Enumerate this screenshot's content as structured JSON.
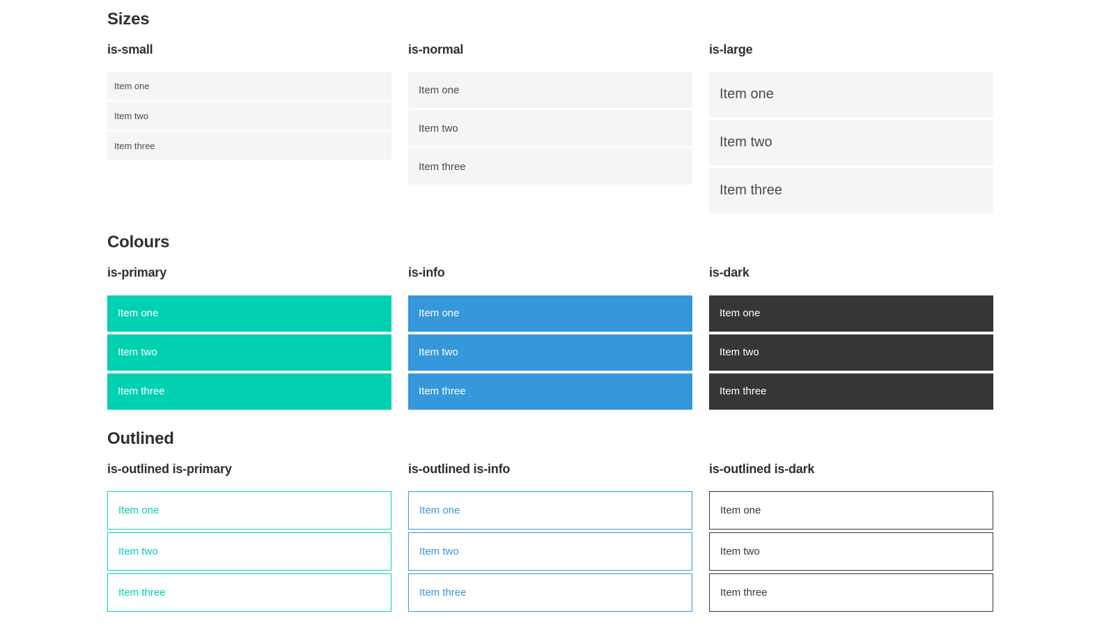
{
  "colors": {
    "primary": "#00d1b2",
    "info": "#3498db",
    "dark": "#363636",
    "item_background": "#f5f5f5",
    "item_text": "#4a4a4a",
    "heading_text": "#2f2f2f",
    "page_background": "#ffffff"
  },
  "sections": [
    {
      "title": "Sizes",
      "groups": [
        {
          "label": "is-small",
          "variant": "size-small",
          "items": [
            "Item one",
            "Item two",
            "Item three"
          ]
        },
        {
          "label": "is-normal",
          "variant": "size-normal",
          "items": [
            "Item one",
            "Item two",
            "Item three"
          ]
        },
        {
          "label": "is-large",
          "variant": "size-large",
          "items": [
            "Item one",
            "Item two",
            "Item three"
          ]
        }
      ]
    },
    {
      "title": "Colours",
      "groups": [
        {
          "label": "is-primary",
          "variant": "color-primary",
          "items": [
            "Item one",
            "Item two",
            "Item three"
          ]
        },
        {
          "label": "is-info",
          "variant": "color-info",
          "items": [
            "Item one",
            "Item two",
            "Item three"
          ]
        },
        {
          "label": "is-dark",
          "variant": "color-dark",
          "items": [
            "Item one",
            "Item two",
            "Item three"
          ]
        }
      ]
    },
    {
      "title": "Outlined",
      "groups": [
        {
          "label": "is-outlined is-primary",
          "variant": "outlined-primary",
          "items": [
            "Item one",
            "Item two",
            "Item three"
          ]
        },
        {
          "label": "is-outlined is-info",
          "variant": "outlined-info",
          "items": [
            "Item one",
            "Item two",
            "Item three"
          ]
        },
        {
          "label": "is-outlined is-dark",
          "variant": "outlined-dark",
          "items": [
            "Item one",
            "Item two",
            "Item three"
          ]
        }
      ]
    }
  ]
}
